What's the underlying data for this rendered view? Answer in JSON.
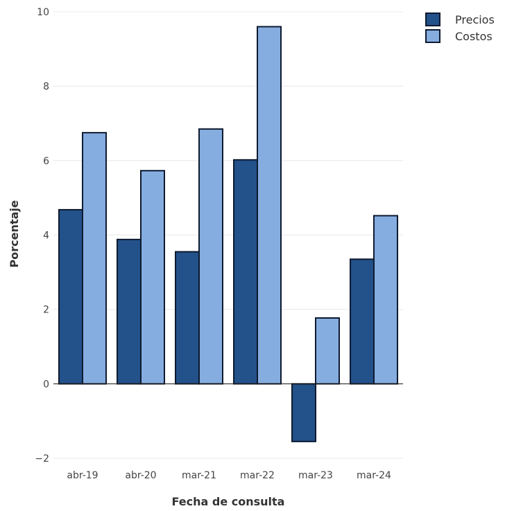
{
  "chart_data": {
    "type": "bar",
    "categories": [
      "abr-19",
      "abr-20",
      "mar-21",
      "mar-22",
      "mar-23",
      "mar-24"
    ],
    "series": [
      {
        "name": "Precios",
        "color": "#23518a",
        "values": [
          4.68,
          3.88,
          3.55,
          6.02,
          -1.55,
          3.35
        ]
      },
      {
        "name": "Costos",
        "color": "#86ade0",
        "values": [
          6.75,
          5.73,
          6.85,
          9.6,
          1.77,
          4.52
        ]
      }
    ],
    "xlabel": "Fecha de consulta",
    "ylabel": "Porcentaje",
    "ylim": [
      -2,
      10
    ],
    "yticks": [
      -2,
      0,
      2,
      4,
      6,
      8,
      10
    ],
    "ytick_labels": [
      "−2",
      "0",
      "2",
      "4",
      "6",
      "8",
      "10"
    ],
    "grid": true,
    "legend_position": "top-right"
  }
}
